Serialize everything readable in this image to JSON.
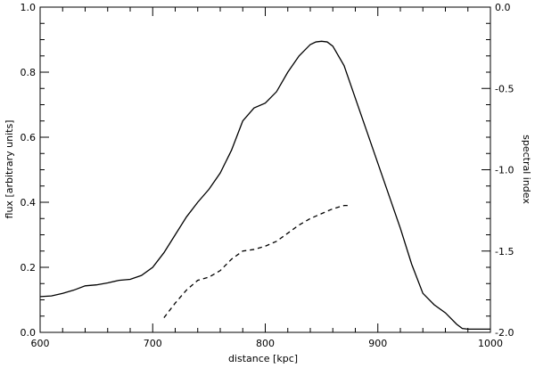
{
  "chart_data": {
    "type": "line",
    "title": "",
    "xlabel": "distance [kpc]",
    "ylabel": "flux [arbitrary units]",
    "y2label": "spectral index",
    "xlim": [
      600,
      1000
    ],
    "ylim": [
      0,
      1.0
    ],
    "y2lim": [
      -2.0,
      0.0
    ],
    "xticks": [
      600,
      700,
      800,
      900,
      1000
    ],
    "yticks": [
      0.0,
      0.2,
      0.4,
      0.6,
      0.8,
      1.0
    ],
    "y2ticks": [
      -2.0,
      -1.5,
      -1.0,
      -0.5,
      0.0
    ],
    "xtick_labels": [
      "600",
      "700",
      "800",
      "900",
      "1000"
    ],
    "ytick_labels": [
      "0.0",
      "0.2",
      "0.4",
      "0.6",
      "0.8",
      "1.0"
    ],
    "y2tick_labels": [
      "-2.0",
      "-1.5",
      "-1.0",
      "-0.5",
      "0.0"
    ],
    "grid": false,
    "series": [
      {
        "axis": "left",
        "style": "solid",
        "x": [
          600,
          610,
          620,
          630,
          640,
          650,
          660,
          670,
          680,
          690,
          700,
          710,
          720,
          730,
          740,
          750,
          760,
          770,
          780,
          790,
          800,
          810,
          820,
          830,
          840,
          845,
          850,
          855,
          860,
          870,
          880,
          890,
          900,
          910,
          920,
          930,
          940,
          950,
          960,
          970,
          975,
          980,
          990,
          1000
        ],
        "y": [
          0.11,
          0.112,
          0.12,
          0.13,
          0.143,
          0.146,
          0.152,
          0.16,
          0.163,
          0.175,
          0.2,
          0.245,
          0.3,
          0.355,
          0.4,
          0.44,
          0.49,
          0.56,
          0.65,
          0.69,
          0.705,
          0.74,
          0.8,
          0.85,
          0.885,
          0.893,
          0.895,
          0.893,
          0.88,
          0.82,
          0.72,
          0.62,
          0.52,
          0.42,
          0.32,
          0.21,
          0.12,
          0.085,
          0.06,
          0.025,
          0.012,
          0.01,
          0.01,
          0.01
        ]
      },
      {
        "axis": "right",
        "style": "dashed",
        "x": [
          710,
          720,
          730,
          740,
          750,
          760,
          770,
          780,
          790,
          800,
          810,
          820,
          830,
          840,
          850,
          860,
          870,
          875
        ],
        "y": [
          -1.91,
          -1.82,
          -1.74,
          -1.68,
          -1.66,
          -1.62,
          -1.55,
          -1.5,
          -1.49,
          -1.47,
          -1.44,
          -1.39,
          -1.34,
          -1.3,
          -1.27,
          -1.24,
          -1.22,
          -1.22
        ]
      }
    ]
  }
}
